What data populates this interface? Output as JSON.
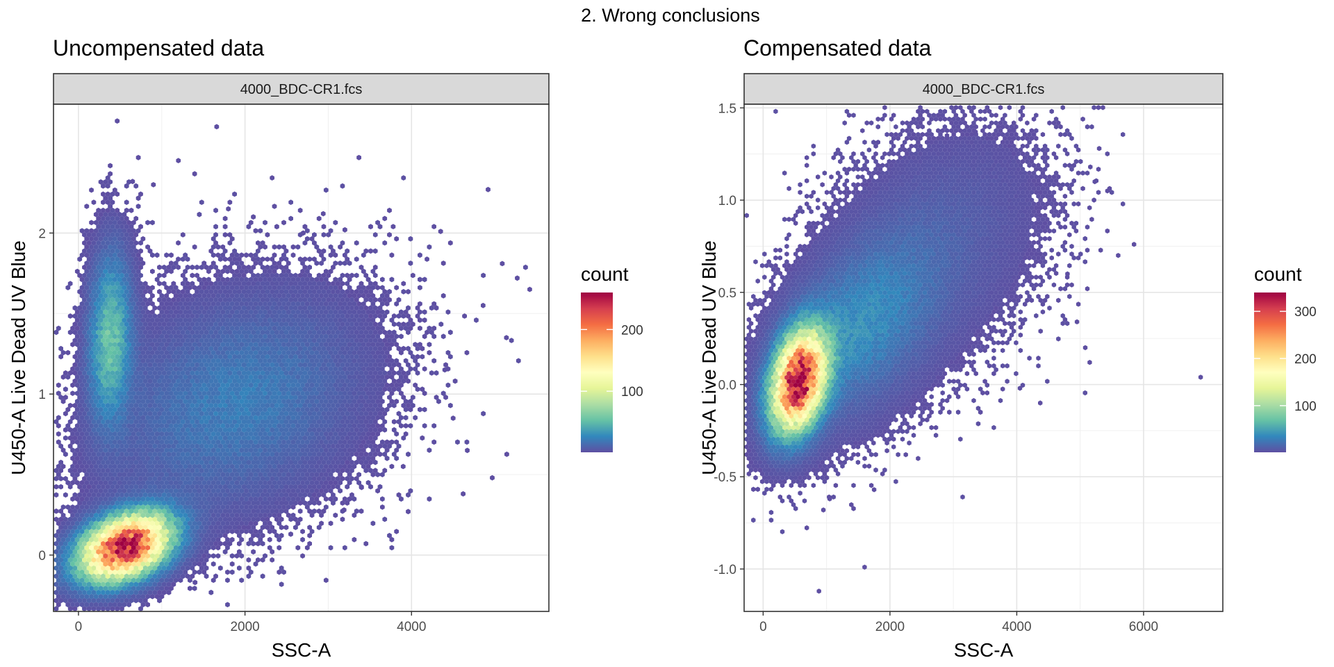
{
  "figure": {
    "title": "2. Wrong conclusions"
  },
  "chart_data": [
    {
      "type": "hexbin",
      "title": "Uncompensated data",
      "facet_label": "4000_BDC-CR1.fcs",
      "xlabel": "SSC-A",
      "ylabel": "U450-A Live Dead UV Blue",
      "xlim": [
        -300,
        5650
      ],
      "ylim": [
        -0.35,
        2.8
      ],
      "x_ticks": [
        0,
        2000,
        4000
      ],
      "x_tick_labels": [
        "0",
        "2000",
        "4000"
      ],
      "y_ticks": [
        0,
        1,
        2
      ],
      "y_tick_labels": [
        "0",
        "1",
        "2"
      ],
      "grid": true,
      "legend": {
        "title": "count",
        "position": "right",
        "palette": "Spectral",
        "range": [
          1,
          260
        ],
        "ticks": [
          100,
          200
        ],
        "tick_labels": [
          "100",
          "200"
        ]
      },
      "clusters": [
        {
          "cx": 560,
          "cy": 0.05,
          "sx": 340,
          "sy": 0.13,
          "rho": 0.35,
          "peak": 260,
          "n": 2300
        },
        {
          "cx": 380,
          "cy": 1.35,
          "sx": 160,
          "sy": 0.33,
          "rho": 0.1,
          "peak": 55,
          "n": 800
        },
        {
          "cx": 1900,
          "cy": 0.95,
          "sx": 900,
          "sy": 0.4,
          "rho": 0.25,
          "peak": 22,
          "n": 1100
        }
      ],
      "outliers": [
        [
          1660,
          2.66
        ],
        [
          4920,
          2.27
        ],
        [
          1200,
          2.45
        ],
        [
          3780,
          2.04
        ],
        [
          4270,
          2.04
        ],
        [
          4350,
          2.01
        ],
        [
          2940,
          2.12
        ],
        [
          5090,
          1.81
        ],
        [
          5270,
          1.72
        ],
        [
          5420,
          1.65
        ],
        [
          5140,
          1.35
        ],
        [
          4860,
          1.55
        ],
        [
          3960,
          0.27
        ],
        [
          4620,
          0.38
        ],
        [
          4970,
          0.48
        ],
        [
          4670,
          0.65
        ],
        [
          3190,
          0.28
        ],
        [
          2550,
          0.13
        ],
        [
          1400,
          -0.17
        ],
        [
          4400,
          1.15
        ],
        [
          3400,
          0.42
        ],
        [
          3900,
          0.55
        ],
        [
          4500,
          0.85
        ],
        [
          1800,
          2.15
        ],
        [
          2100,
          2.1
        ],
        [
          2700,
          2.0
        ],
        [
          900,
          2.3
        ],
        [
          650,
          2.32
        ],
        [
          3200,
          2.02
        ]
      ]
    },
    {
      "type": "hexbin",
      "title": "Compensated data",
      "facet_label": "4000_BDC-CR1.fcs",
      "xlabel": "SSC-A",
      "ylabel": "U450-A Live Dead UV Blue",
      "xlim": [
        -300,
        7250
      ],
      "ylim": [
        -1.23,
        1.52
      ],
      "x_ticks": [
        0,
        2000,
        4000,
        6000
      ],
      "x_tick_labels": [
        "0",
        "2000",
        "4000",
        "6000"
      ],
      "y_ticks": [
        -1.0,
        -0.5,
        0.0,
        0.5,
        1.0,
        1.5
      ],
      "y_tick_labels": [
        "-1.0",
        "-0.5",
        "0.0",
        "0.5",
        "1.0",
        "1.5"
      ],
      "grid": true,
      "legend": {
        "title": "count",
        "position": "right",
        "palette": "Spectral",
        "range": [
          1,
          340
        ],
        "ticks": [
          100,
          200,
          300
        ],
        "tick_labels": [
          "100",
          "200",
          "300"
        ]
      },
      "clusters": [
        {
          "cx": 560,
          "cy": 0.02,
          "sx": 270,
          "sy": 0.17,
          "rho": 0.3,
          "peak": 340,
          "n": 2500
        },
        {
          "cx": 1500,
          "cy": 0.3,
          "sx": 750,
          "sy": 0.3,
          "rho": 0.45,
          "peak": 35,
          "n": 1200
        },
        {
          "cx": 2700,
          "cy": 0.75,
          "sx": 1000,
          "sy": 0.38,
          "rho": 0.35,
          "peak": 10,
          "n": 900
        }
      ],
      "outliers": [
        [
          6900,
          0.04
        ],
        [
          5850,
          0.76
        ],
        [
          5600,
          0.7
        ],
        [
          5430,
          1.05
        ],
        [
          5300,
          1.28
        ],
        [
          5160,
          1.18
        ],
        [
          5080,
          0.2
        ],
        [
          5150,
          0.12
        ],
        [
          4370,
          -0.1
        ],
        [
          4050,
          -0.02
        ],
        [
          1600,
          -0.99
        ],
        [
          880,
          -1.12
        ],
        [
          950,
          -0.68
        ],
        [
          1050,
          -0.62
        ],
        [
          1750,
          -0.57
        ],
        [
          2250,
          -0.38
        ],
        [
          5230,
          1.1
        ],
        [
          4950,
          0.34
        ],
        [
          4800,
          0.6
        ],
        [
          3950,
          1.38
        ],
        [
          3350,
          1.37
        ],
        [
          2900,
          1.35
        ]
      ]
    }
  ]
}
